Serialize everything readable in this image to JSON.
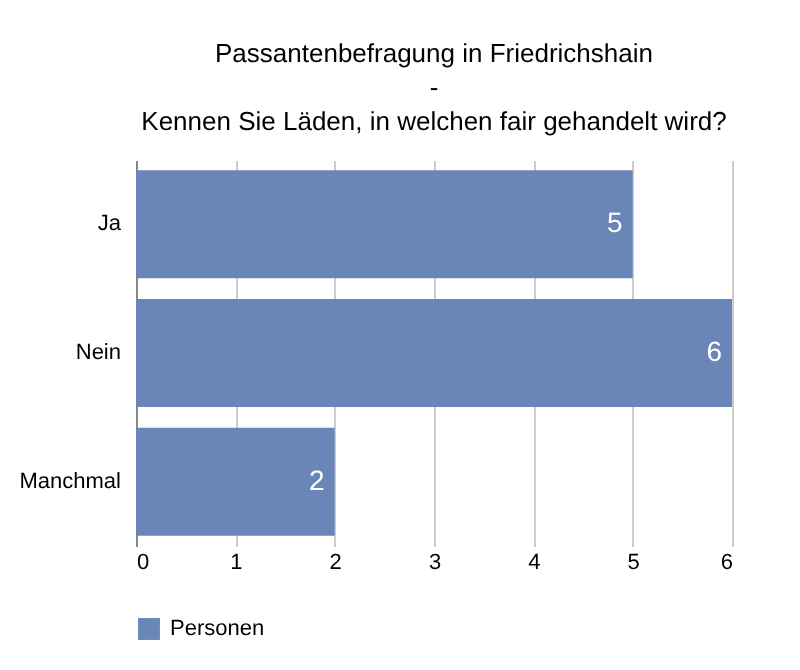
{
  "chart_data": {
    "type": "bar",
    "orientation": "horizontal",
    "title": "Passantenbefragung in Friedrichshain\n-\nKennen Sie Läden, in welchen fair gehandelt wird?",
    "categories": [
      "Ja",
      "Nein",
      "Manchmal"
    ],
    "series": [
      {
        "name": "Personen",
        "color": "#6a86b8",
        "values": [
          5,
          6,
          2
        ]
      }
    ],
    "xlim": [
      0,
      6
    ],
    "xticks": [
      0,
      1,
      2,
      3,
      4,
      5,
      6
    ],
    "grid": "x",
    "legend": "bottom",
    "data_labels": true
  }
}
